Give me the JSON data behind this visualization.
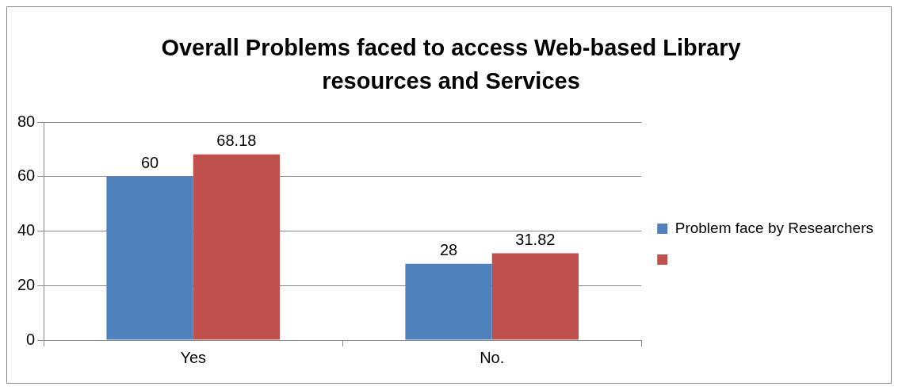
{
  "chart_data": {
    "type": "bar",
    "title": "Overall Problems faced to access Web-based Library resources and Services",
    "categories": [
      "Yes",
      "No."
    ],
    "series": [
      {
        "name": "Problem face by Researchers",
        "color": "#4f81bd",
        "values": [
          60,
          28
        ]
      },
      {
        "color": "#c0504d",
        "values": [
          68.18,
          31.82
        ]
      }
    ],
    "ylim": [
      0,
      80
    ],
    "yticks": [
      0,
      20,
      40,
      60,
      80
    ],
    "grid": "y",
    "legend": "right",
    "data_labels": true
  }
}
